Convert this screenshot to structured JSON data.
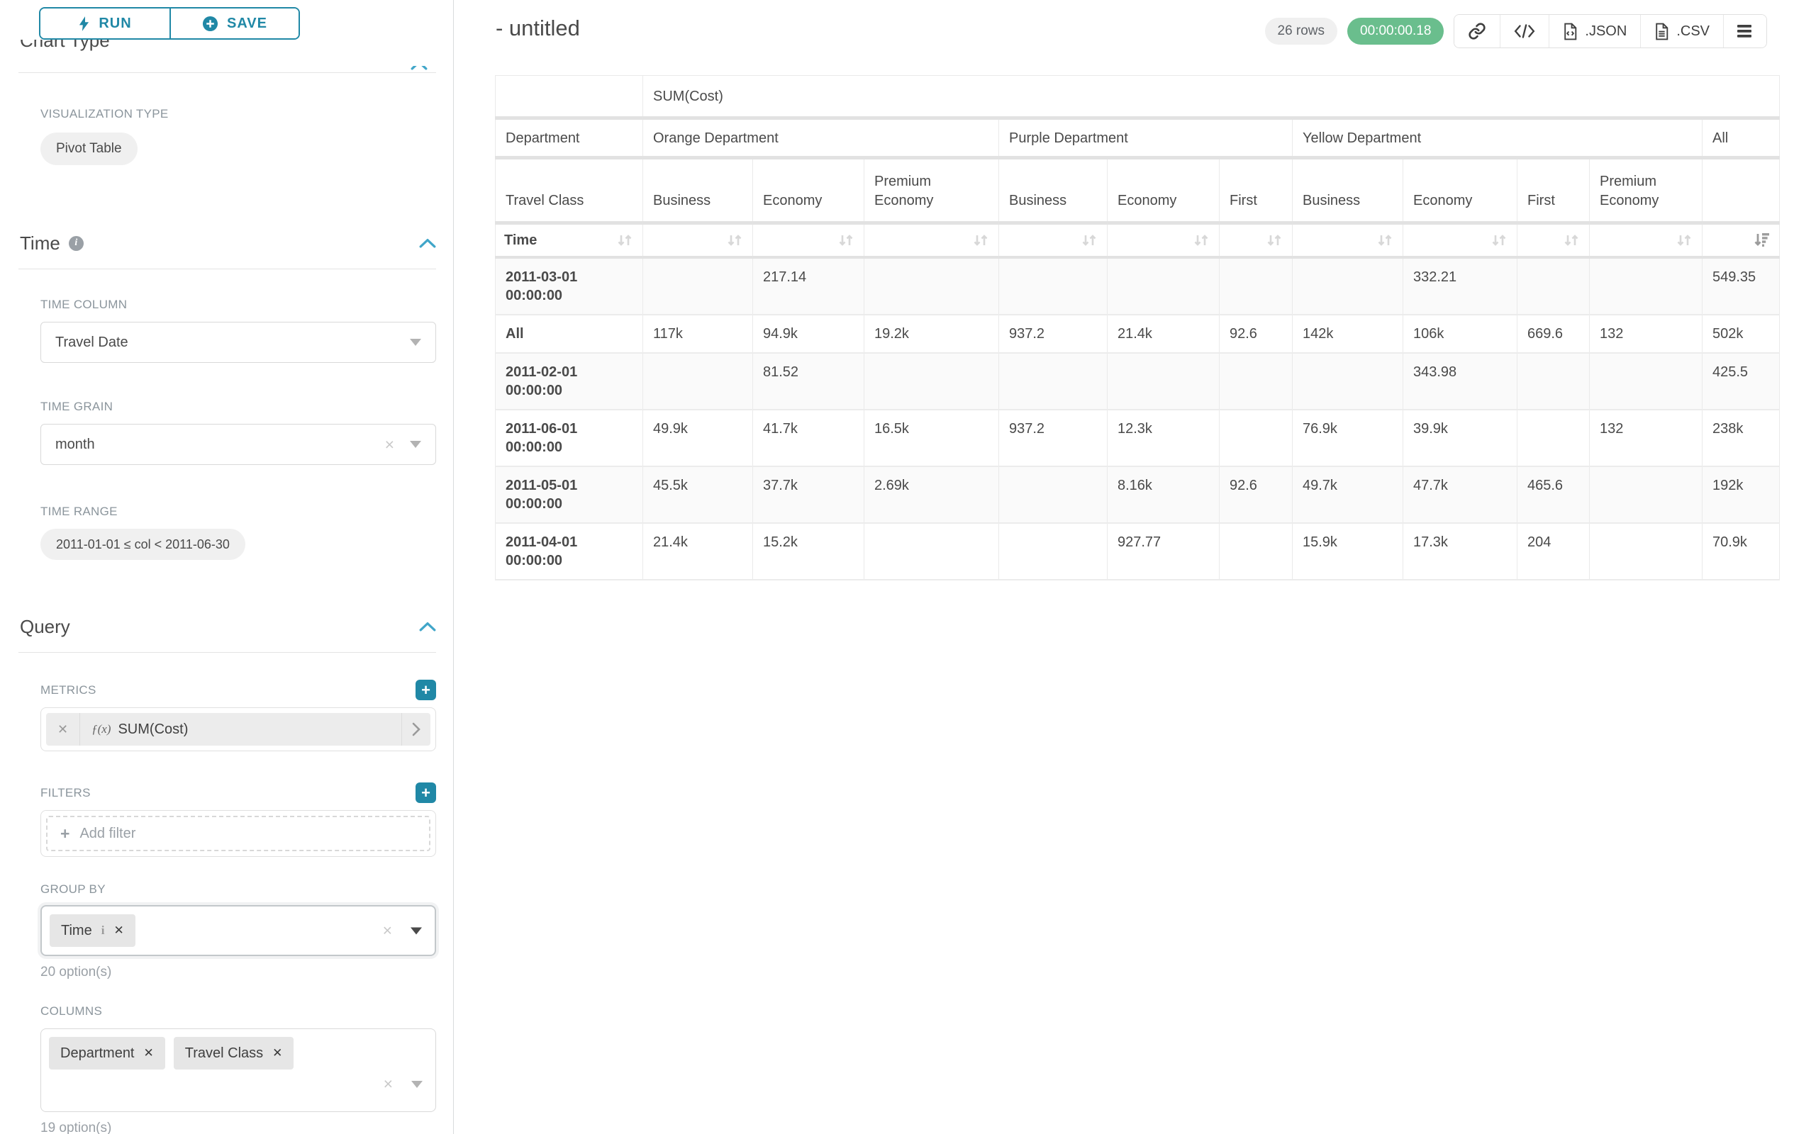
{
  "colors": {
    "accent_teal": "#2088a6",
    "chevron_teal": "#41a6c9",
    "timer_green": "#6abe8d"
  },
  "sidebar": {
    "run_label": "RUN",
    "save_label": "SAVE",
    "chart_type_heading": "Chart Type",
    "viz": {
      "label": "VISUALIZATION TYPE",
      "value": "Pivot Table"
    },
    "time": {
      "title": "Time",
      "column_label": "TIME COLUMN",
      "column_value": "Travel Date",
      "grain_label": "TIME GRAIN",
      "grain_value": "month",
      "range_label": "TIME RANGE",
      "range_value": "2011-01-01 ≤ col < 2011-06-30"
    },
    "query": {
      "title": "Query",
      "metrics_label": "METRICS",
      "metric_prefix": "ƒ(x)",
      "metric_name": "SUM(Cost)",
      "filters_label": "FILTERS",
      "add_filter_label": "Add filter",
      "group_by_label": "GROUP BY",
      "group_by": {
        "values": [
          "Time"
        ]
      },
      "group_by_hint": "20 option(s)",
      "columns_label": "COLUMNS",
      "columns": {
        "values": [
          "Department",
          "Travel Class"
        ]
      },
      "columns_hint": "19 option(s)"
    }
  },
  "header": {
    "title": "- untitled",
    "row_count": "26 rows",
    "timer": "00:00:00.18",
    "json_label": ".JSON",
    "csv_label": ".CSV"
  },
  "pivot_table": {
    "metric_header": "SUM(Cost)",
    "dept_row_label": "Department",
    "class_row_label": "Travel Class",
    "time_row_label": "Time",
    "col_groups": [
      {
        "label": "Orange Department",
        "classes": [
          "Business",
          "Economy",
          "Premium Economy"
        ]
      },
      {
        "label": "Purple Department",
        "classes": [
          "Business",
          "Economy",
          "First"
        ]
      },
      {
        "label": "Yellow Department",
        "classes": [
          "Business",
          "Economy",
          "First",
          "Premium Economy"
        ]
      },
      {
        "label": "All",
        "classes": [
          ""
        ]
      }
    ],
    "sorted_column": "All",
    "sort_direction": "desc",
    "rows": [
      {
        "key": "2011-03-01 00:00:00",
        "values": [
          "",
          "217.14",
          "",
          "",
          "",
          "",
          "",
          "332.21",
          "",
          "",
          "549.35"
        ]
      },
      {
        "key": "All",
        "values": [
          "117k",
          "94.9k",
          "19.2k",
          "937.2",
          "21.4k",
          "92.6",
          "142k",
          "106k",
          "669.6",
          "132",
          "502k"
        ]
      },
      {
        "key": "2011-02-01 00:00:00",
        "values": [
          "",
          "81.52",
          "",
          "",
          "",
          "",
          "",
          "343.98",
          "",
          "",
          "425.5"
        ]
      },
      {
        "key": "2011-06-01 00:00:00",
        "values": [
          "49.9k",
          "41.7k",
          "16.5k",
          "937.2",
          "12.3k",
          "",
          "76.9k",
          "39.9k",
          "",
          "132",
          "238k"
        ]
      },
      {
        "key": "2011-05-01 00:00:00",
        "values": [
          "45.5k",
          "37.7k",
          "2.69k",
          "",
          "8.16k",
          "92.6",
          "49.7k",
          "47.7k",
          "465.6",
          "",
          "192k"
        ]
      },
      {
        "key": "2011-04-01 00:00:00",
        "values": [
          "21.4k",
          "15.2k",
          "",
          "",
          "927.77",
          "",
          "15.9k",
          "17.3k",
          "204",
          "",
          "70.9k"
        ]
      }
    ]
  }
}
